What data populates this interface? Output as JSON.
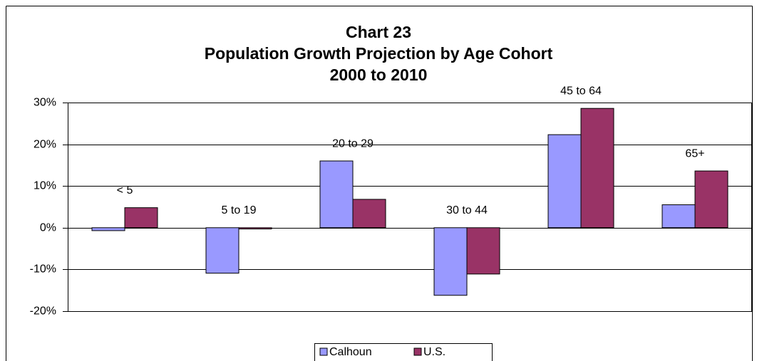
{
  "chart_data": {
    "type": "bar",
    "title": [
      "Chart 23",
      "Population Growth Projection by Age Cohort",
      "2000 to 2010"
    ],
    "categories": [
      "< 5",
      "5 to 19",
      "20 to 29",
      "30 to 44",
      "45 to 64",
      "65+"
    ],
    "series": [
      {
        "name": "Calhoun",
        "color": "#9999ff",
        "values": [
          -0.7,
          -10.9,
          16.0,
          -16.2,
          22.3,
          5.5
        ]
      },
      {
        "name": "U.S.",
        "color": "#993366",
        "values": [
          4.8,
          -0.3,
          6.8,
          -11.1,
          28.6,
          13.6
        ]
      }
    ],
    "ylim": [
      -20,
      30
    ],
    "yticks": [
      {
        "value": -20,
        "label": "-20%"
      },
      {
        "value": -10,
        "label": "-10%"
      },
      {
        "value": 0,
        "label": "0%"
      },
      {
        "value": 10,
        "label": "10%"
      },
      {
        "value": 20,
        "label": "20%"
      },
      {
        "value": 30,
        "label": "30%"
      }
    ],
    "grid": true,
    "legend": "bottom"
  }
}
